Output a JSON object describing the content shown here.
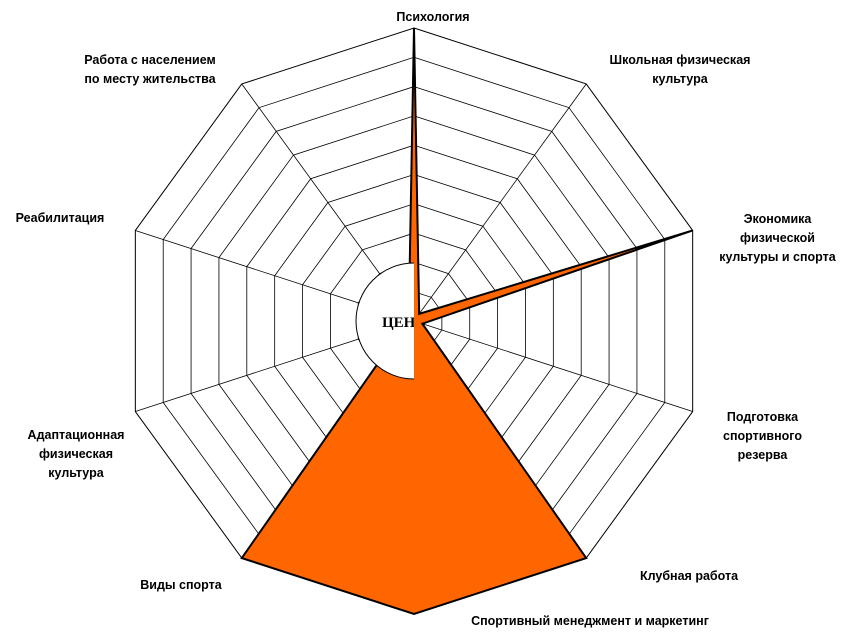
{
  "chart_data": {
    "type": "radar",
    "title": "",
    "center_label": "ЦЕНТР",
    "axes": [
      "Психология",
      "Школьная физическая\nкультура",
      "Экономика\nфизической\nкультуры и спорта",
      "Подготовка\nспортивного\nрезерва",
      "Клубная работа",
      "Спортивный менеджмент и маркетинг",
      "Виды спорта",
      "Адаптационная\nфизическая\nкультура",
      "Реабилитация",
      "Работа с населением\nпо месту жительства"
    ],
    "rings": 10,
    "max": 10,
    "grid": true,
    "series": [
      {
        "color": "#FF6600",
        "values": [
          10,
          0.3,
          10,
          0.3,
          10,
          10,
          10,
          0.3,
          0.3,
          0.3
        ]
      }
    ]
  },
  "colors": {
    "fill": "#FF6600",
    "stroke": "#000000",
    "grid": "#000000"
  }
}
